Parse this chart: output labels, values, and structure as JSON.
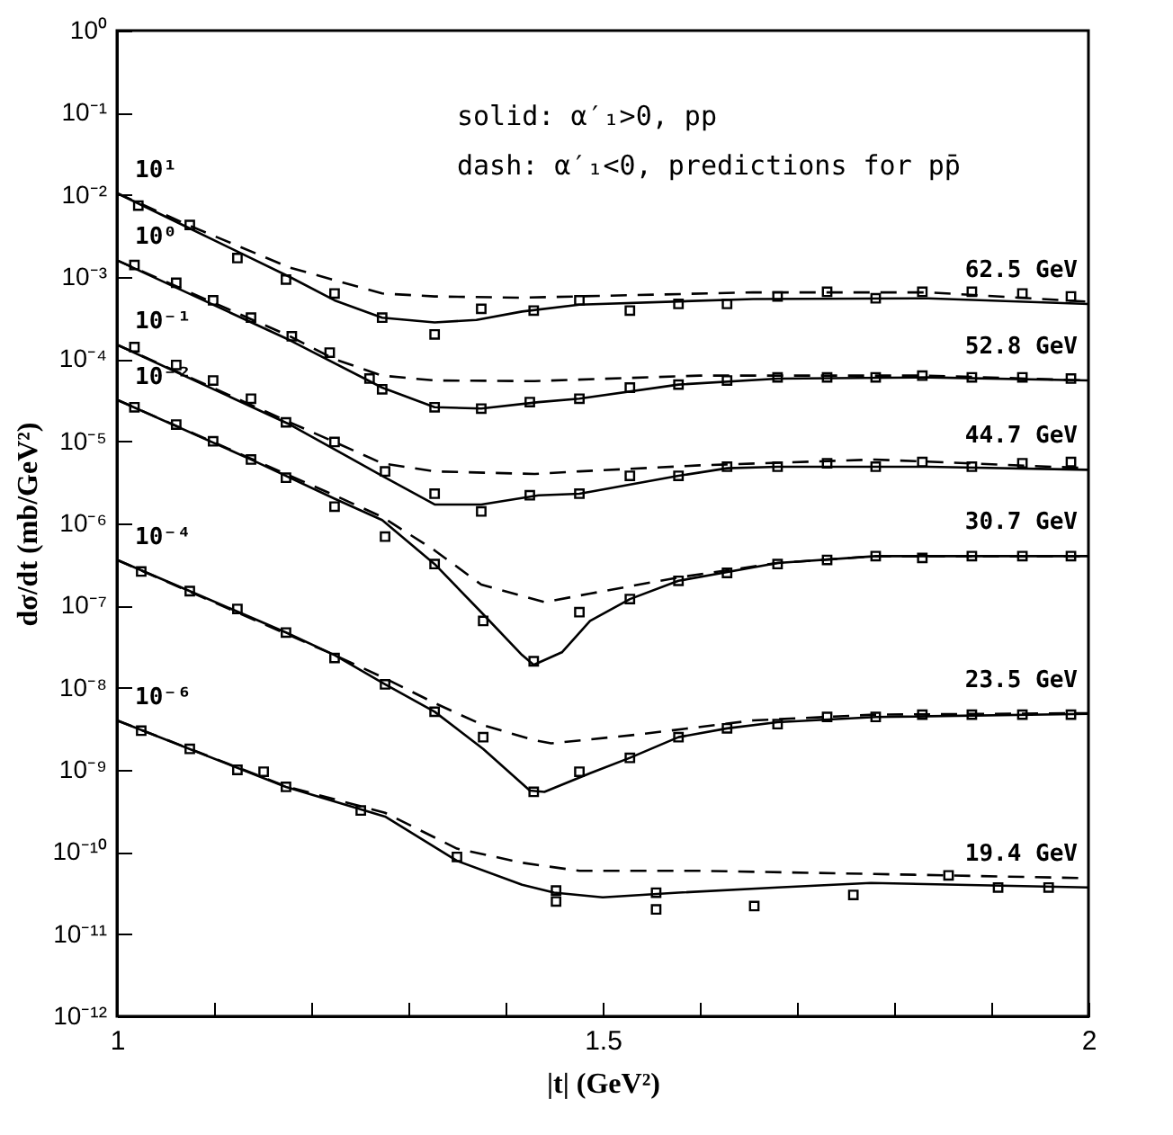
{
  "chart_data": {
    "type": "line",
    "xlabel": "|t| (GeV²)",
    "ylabel": "dσ/dt (mb/GeV²)",
    "log": "y",
    "grid": false,
    "xlim": [
      1,
      2
    ],
    "ylim": [
      1e-12,
      1
    ],
    "xticks": [
      1,
      {
        "value": 1.1,
        "label": null
      },
      {
        "value": 1.2,
        "label": null
      },
      {
        "value": 1.3,
        "label": null
      },
      {
        "value": 1.4,
        "label": null
      },
      1.5,
      {
        "value": 1.6,
        "label": null
      },
      {
        "value": 1.7,
        "label": null
      },
      {
        "value": 1.8,
        "label": null
      },
      {
        "value": 1.9,
        "label": null
      },
      2
    ],
    "yticks": [
      {
        "value": 1,
        "label": "10⁰"
      },
      {
        "value": 0.1,
        "label": "10⁻¹"
      },
      {
        "value": 0.01,
        "label": "10⁻²"
      },
      {
        "value": 0.001,
        "label": "10⁻³"
      },
      {
        "value": 0.0001,
        "label": "10⁻⁴"
      },
      {
        "value": 1e-05,
        "label": "10⁻⁵"
      },
      {
        "value": 1e-06,
        "label": "10⁻⁶"
      },
      {
        "value": 1e-07,
        "label": "10⁻⁷"
      },
      {
        "value": 1e-08,
        "label": "10⁻⁸"
      },
      {
        "value": 1e-09,
        "label": "10⁻⁹"
      },
      {
        "value": 1e-10,
        "label": "10⁻¹⁰"
      },
      {
        "value": 1e-11,
        "label": "10⁻¹¹"
      },
      {
        "value": 1e-12,
        "label": "10⁻¹²"
      }
    ],
    "series": [
      {
        "type": "line",
        "line_style": "solid",
        "color": "#000000",
        "x": [
          1.0,
          1.075,
          1.178,
          1.224,
          1.273,
          1.327,
          1.37,
          1.417,
          1.476,
          1.655,
          1.835,
          2.0
        ],
        "values": [
          0.0105,
          0.0039,
          0.001,
          0.00052,
          0.00032,
          0.00028,
          0.0003,
          0.00038,
          0.00046,
          0.00054,
          0.00055,
          0.00047
        ]
      },
      {
        "type": "line",
        "line_style": "dashed",
        "color": "#000000",
        "x": [
          1.0,
          1.075,
          1.178,
          1.273,
          1.327,
          1.417,
          1.5,
          1.655,
          1.835,
          2.0
        ],
        "values": [
          0.0105,
          0.0042,
          0.0013,
          0.00063,
          0.00058,
          0.00056,
          0.00059,
          0.00065,
          0.00065,
          0.0005
        ]
      },
      {
        "type": "scatter",
        "marker": "square",
        "color": "#000000",
        "x": [
          1.022,
          1.075,
          1.124,
          1.174,
          1.224,
          1.273,
          1.327,
          1.375,
          1.429,
          1.476,
          1.528,
          1.578,
          1.628,
          1.68,
          1.731,
          1.781,
          1.829,
          1.88,
          1.932,
          1.982
        ],
        "values": [
          0.0074,
          0.0043,
          0.0017,
          0.00093,
          0.00063,
          0.00032,
          0.0002,
          0.00041,
          0.00039,
          0.00052,
          0.00039,
          0.00047,
          0.00047,
          0.00058,
          0.00066,
          0.00055,
          0.00066,
          0.00066,
          0.00063,
          0.00058
        ]
      },
      {
        "type": "line",
        "line_style": "solid",
        "color": "#000000",
        "x": [
          1.0,
          1.178,
          1.273,
          1.327,
          1.375,
          1.434,
          1.476,
          1.578,
          1.68,
          1.835,
          2.0
        ],
        "values": [
          0.0016,
          0.00017,
          4.5e-05,
          2.6e-05,
          2.5e-05,
          3e-05,
          3.3e-05,
          4.9e-05,
          5.8e-05,
          6e-05,
          5.5e-05
        ]
      },
      {
        "type": "line",
        "line_style": "dashed",
        "color": "#000000",
        "x": [
          1.0,
          1.178,
          1.224,
          1.273,
          1.327,
          1.43,
          1.6,
          1.835,
          2.0
        ],
        "values": [
          0.0016,
          0.00019,
          0.0001,
          6.3e-05,
          5.5e-05,
          5.4e-05,
          6.3e-05,
          6.3e-05,
          5.5e-05
        ]
      },
      {
        "type": "scatter",
        "marker": "square",
        "color": "#000000",
        "x": [
          1.018,
          1.061,
          1.099,
          1.138,
          1.18,
          1.219,
          1.26,
          1.273,
          1.327,
          1.375,
          1.425,
          1.476,
          1.528,
          1.578,
          1.628,
          1.68,
          1.731,
          1.781,
          1.829,
          1.88,
          1.932,
          1.982
        ],
        "values": [
          0.0014,
          0.00085,
          0.00052,
          0.00032,
          0.00019,
          0.00012,
          5.8e-05,
          4.3e-05,
          2.6e-05,
          2.5e-05,
          3e-05,
          3.3e-05,
          4.5e-05,
          4.9e-05,
          5.5e-05,
          6e-05,
          6e-05,
          6e-05,
          6.3e-05,
          6e-05,
          6e-05,
          5.8e-05
        ]
      },
      {
        "type": "line",
        "line_style": "solid",
        "color": "#000000",
        "x": [
          1.0,
          1.178,
          1.273,
          1.327,
          1.375,
          1.434,
          1.476,
          1.578,
          1.628,
          1.68,
          1.835,
          2.0
        ],
        "values": [
          0.00015,
          1.6e-05,
          3.8e-06,
          1.7e-06,
          1.7e-06,
          2.2e-06,
          2.3e-06,
          3.8e-06,
          4.7e-06,
          4.9e-06,
          4.9e-06,
          4.5e-06
        ]
      },
      {
        "type": "line",
        "line_style": "dashed",
        "color": "#000000",
        "x": [
          1.0,
          1.178,
          1.224,
          1.273,
          1.327,
          1.43,
          1.476,
          1.6,
          1.78,
          2.0
        ],
        "values": [
          0.00015,
          1.7e-05,
          9.8e-06,
          5.4e-06,
          4.3e-06,
          4e-06,
          4.3e-06,
          5.1e-06,
          6e-06,
          4.7e-06
        ]
      },
      {
        "type": "scatter",
        "marker": "square",
        "color": "#000000",
        "x": [
          1.018,
          1.061,
          1.099,
          1.138,
          1.174,
          1.224,
          1.276,
          1.327,
          1.375,
          1.425,
          1.476,
          1.528,
          1.578,
          1.628,
          1.68,
          1.731,
          1.781,
          1.829,
          1.88,
          1.932,
          1.982
        ],
        "values": [
          0.00014,
          8.5e-05,
          5.5e-05,
          3.3e-05,
          1.7e-05,
          9.8e-06,
          4.3e-06,
          2.3e-06,
          1.4e-06,
          2.2e-06,
          2.3e-06,
          3.8e-06,
          3.8e-06,
          4.9e-06,
          4.9e-06,
          5.4e-06,
          4.9e-06,
          5.6e-06,
          4.9e-06,
          5.4e-06,
          5.6e-06
        ]
      },
      {
        "type": "line",
        "line_style": "solid",
        "color": "#000000",
        "x": [
          1.0,
          1.138,
          1.224,
          1.273,
          1.327,
          1.375,
          1.417,
          1.429,
          1.458,
          1.487,
          1.528,
          1.578,
          1.68,
          1.781,
          1.88,
          2.0
        ],
        "values": [
          3.2e-05,
          6e-06,
          2e-06,
          1.1e-06,
          3.2e-07,
          8.3e-08,
          2.5e-08,
          1.9e-08,
          2.7e-08,
          6.5e-08,
          1.2e-07,
          2e-07,
          3.3e-07,
          4e-07,
          4e-07,
          4e-07
        ]
      },
      {
        "type": "line",
        "line_style": "dashed",
        "color": "#000000",
        "x": [
          1.0,
          1.224,
          1.273,
          1.327,
          1.375,
          1.44,
          1.487,
          1.578,
          1.68,
          1.781,
          2.0
        ],
        "values": [
          3.2e-05,
          2.2e-06,
          1.2e-06,
          4.7e-07,
          1.8e-07,
          1.1e-07,
          1.4e-07,
          2.2e-07,
          3.3e-07,
          4e-07,
          4e-07
        ]
      },
      {
        "type": "scatter",
        "marker": "square",
        "color": "#000000",
        "x": [
          1.018,
          1.061,
          1.099,
          1.138,
          1.174,
          1.224,
          1.276,
          1.327,
          1.377,
          1.429,
          1.476,
          1.528,
          1.578,
          1.628,
          1.68,
          1.731,
          1.781,
          1.829,
          1.88,
          1.932,
          1.982
        ],
        "values": [
          2.6e-05,
          1.6e-05,
          1e-05,
          6e-06,
          3.6e-06,
          1.6e-06,
          6.9e-07,
          3.2e-07,
          6.5e-08,
          2.1e-08,
          8.3e-08,
          1.2e-07,
          2e-07,
          2.5e-07,
          3.2e-07,
          3.6e-07,
          4e-07,
          3.8e-07,
          4e-07,
          4e-07,
          4e-07
        ]
      },
      {
        "type": "line",
        "line_style": "solid",
        "color": "#000000",
        "x": [
          1.0,
          1.075,
          1.174,
          1.224,
          1.276,
          1.327,
          1.377,
          1.425,
          1.44,
          1.487,
          1.528,
          1.578,
          1.628,
          1.68,
          1.781,
          2.0
        ],
        "values": [
          3.6e-07,
          1.5e-07,
          4.7e-08,
          2.5e-08,
          1.1e-08,
          5.1e-09,
          1.8e-09,
          5.6e-10,
          5.4e-10,
          9.1e-10,
          1.4e-09,
          2.5e-09,
          3.2e-09,
          3.8e-09,
          4.4e-09,
          4.8e-09
        ]
      },
      {
        "type": "line",
        "line_style": "dashed",
        "color": "#000000",
        "x": [
          1.0,
          1.224,
          1.276,
          1.327,
          1.377,
          1.429,
          1.447,
          1.537,
          1.655,
          1.78,
          2.0
        ],
        "values": [
          3.6e-07,
          2.5e-08,
          1.3e-08,
          6.5e-09,
          3.5e-09,
          2.3e-09,
          2.1e-09,
          2.7e-09,
          4e-09,
          4.7e-09,
          4.9e-09
        ]
      },
      {
        "type": "scatter",
        "marker": "square",
        "color": "#000000",
        "x": [
          1.025,
          1.075,
          1.124,
          1.174,
          1.224,
          1.276,
          1.327,
          1.377,
          1.429,
          1.476,
          1.528,
          1.578,
          1.628,
          1.68,
          1.731,
          1.781,
          1.829,
          1.88,
          1.932,
          1.982
        ],
        "values": [
          2.6e-07,
          1.5e-07,
          9.1e-08,
          4.7e-08,
          2.3e-08,
          1.1e-08,
          5.1e-09,
          2.5e-09,
          5.4e-10,
          9.5e-10,
          1.4e-09,
          2.5e-09,
          3.2e-09,
          3.6e-09,
          4.4e-09,
          4.4e-09,
          4.7e-09,
          4.7e-09,
          4.7e-09,
          4.7e-09
        ]
      },
      {
        "type": "line",
        "line_style": "solid",
        "color": "#000000",
        "x": [
          1.0,
          1.174,
          1.276,
          1.35,
          1.417,
          1.45,
          1.5,
          1.578,
          1.68,
          1.776,
          2.0
        ],
        "values": [
          4e-09,
          6.2e-10,
          2.7e-10,
          7.8e-11,
          4e-11,
          3.2e-11,
          2.8e-11,
          3.2e-11,
          3.7e-11,
          4.2e-11,
          3.7e-11
        ]
      },
      {
        "type": "line",
        "line_style": "dashed",
        "color": "#000000",
        "x": [
          1.0,
          1.174,
          1.276,
          1.35,
          1.417,
          1.476,
          1.6,
          1.78,
          2.0
        ],
        "values": [
          4e-09,
          6.3e-10,
          3e-10,
          1.1e-10,
          7.4e-11,
          5.9e-11,
          5.9e-11,
          5.4e-11,
          4.8e-11
        ]
      },
      {
        "type": "scatter",
        "marker": "square",
        "color": "#000000",
        "x": [
          1.025,
          1.075,
          1.124,
          1.151,
          1.174,
          1.251,
          1.35,
          1.452,
          1.452,
          1.555,
          1.555,
          1.656,
          1.758,
          1.856,
          1.907,
          1.959
        ],
        "values": [
          3e-09,
          1.8e-09,
          1e-09,
          9.5e-10,
          6.2e-10,
          3.2e-10,
          8.7e-11,
          3.4e-11,
          2.5e-11,
          3.2e-11,
          2e-11,
          2.2e-11,
          3e-11,
          5.2e-11,
          3.7e-11,
          3.7e-11
        ]
      }
    ],
    "annotations": [
      "solid: α′₁>0, pp",
      "dash: α′₁<0, predictions for pp̄",
      "10¹",
      "10⁰",
      "10⁻¹",
      "10⁻²",
      "10⁻⁴",
      "10⁻⁶",
      "62.5 GeV",
      "52.8 GeV",
      "44.7 GeV",
      "30.7 GeV",
      "23.5 GeV",
      "19.4 GeV"
    ]
  }
}
